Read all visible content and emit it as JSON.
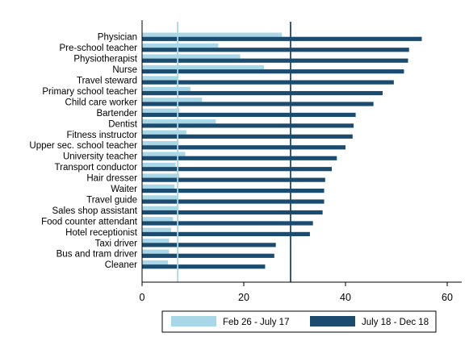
{
  "chart_data": {
    "type": "bar",
    "orientation": "horizontal",
    "categories": [
      "Physician",
      "Pre-school teacher",
      "Physiotherapist",
      "Nurse",
      "Travel steward",
      "Primary school teacher",
      "Child care worker",
      "Bartender",
      "Dentist",
      "Fitness instructor",
      "Upper sec. school teacher",
      "University teacher",
      "Transport conductor",
      "Hair dresser",
      "Waiter",
      "Travel guide",
      "Sales shop assistant",
      "Food counter attendant",
      "Hotel receptionist",
      "Taxi driver",
      "Bus and tram driver",
      "Cleaner"
    ],
    "series": [
      {
        "name": "Feb 26 - July 17",
        "color": "#a8d8e8",
        "values": [
          27.5,
          15.0,
          19.3,
          24.0,
          7.0,
          9.5,
          11.8,
          7.3,
          14.5,
          8.7,
          7.2,
          8.5,
          6.6,
          7.3,
          6.4,
          7.1,
          7.1,
          6.1,
          5.7,
          5.3,
          5.3,
          5.1
        ]
      },
      {
        "name": "July 18 - Dec 18",
        "color": "#1b4b6f",
        "values": [
          55.0,
          52.5,
          52.3,
          51.5,
          49.5,
          47.3,
          45.5,
          42.0,
          41.6,
          41.4,
          40.0,
          38.3,
          37.3,
          36.0,
          35.8,
          35.8,
          35.5,
          33.6,
          33.0,
          26.3,
          26.0,
          24.2
        ]
      }
    ],
    "reference_lines": [
      {
        "value": 7.0,
        "color": "#a8d8e8"
      },
      {
        "value": 29.2,
        "color": "#1b4b6f"
      }
    ],
    "xlim": [
      0,
      63
    ],
    "xticks": [
      0,
      20,
      40,
      60
    ],
    "title": "",
    "xlabel": "",
    "ylabel": "",
    "grid": false,
    "legend_position": "bottom"
  }
}
